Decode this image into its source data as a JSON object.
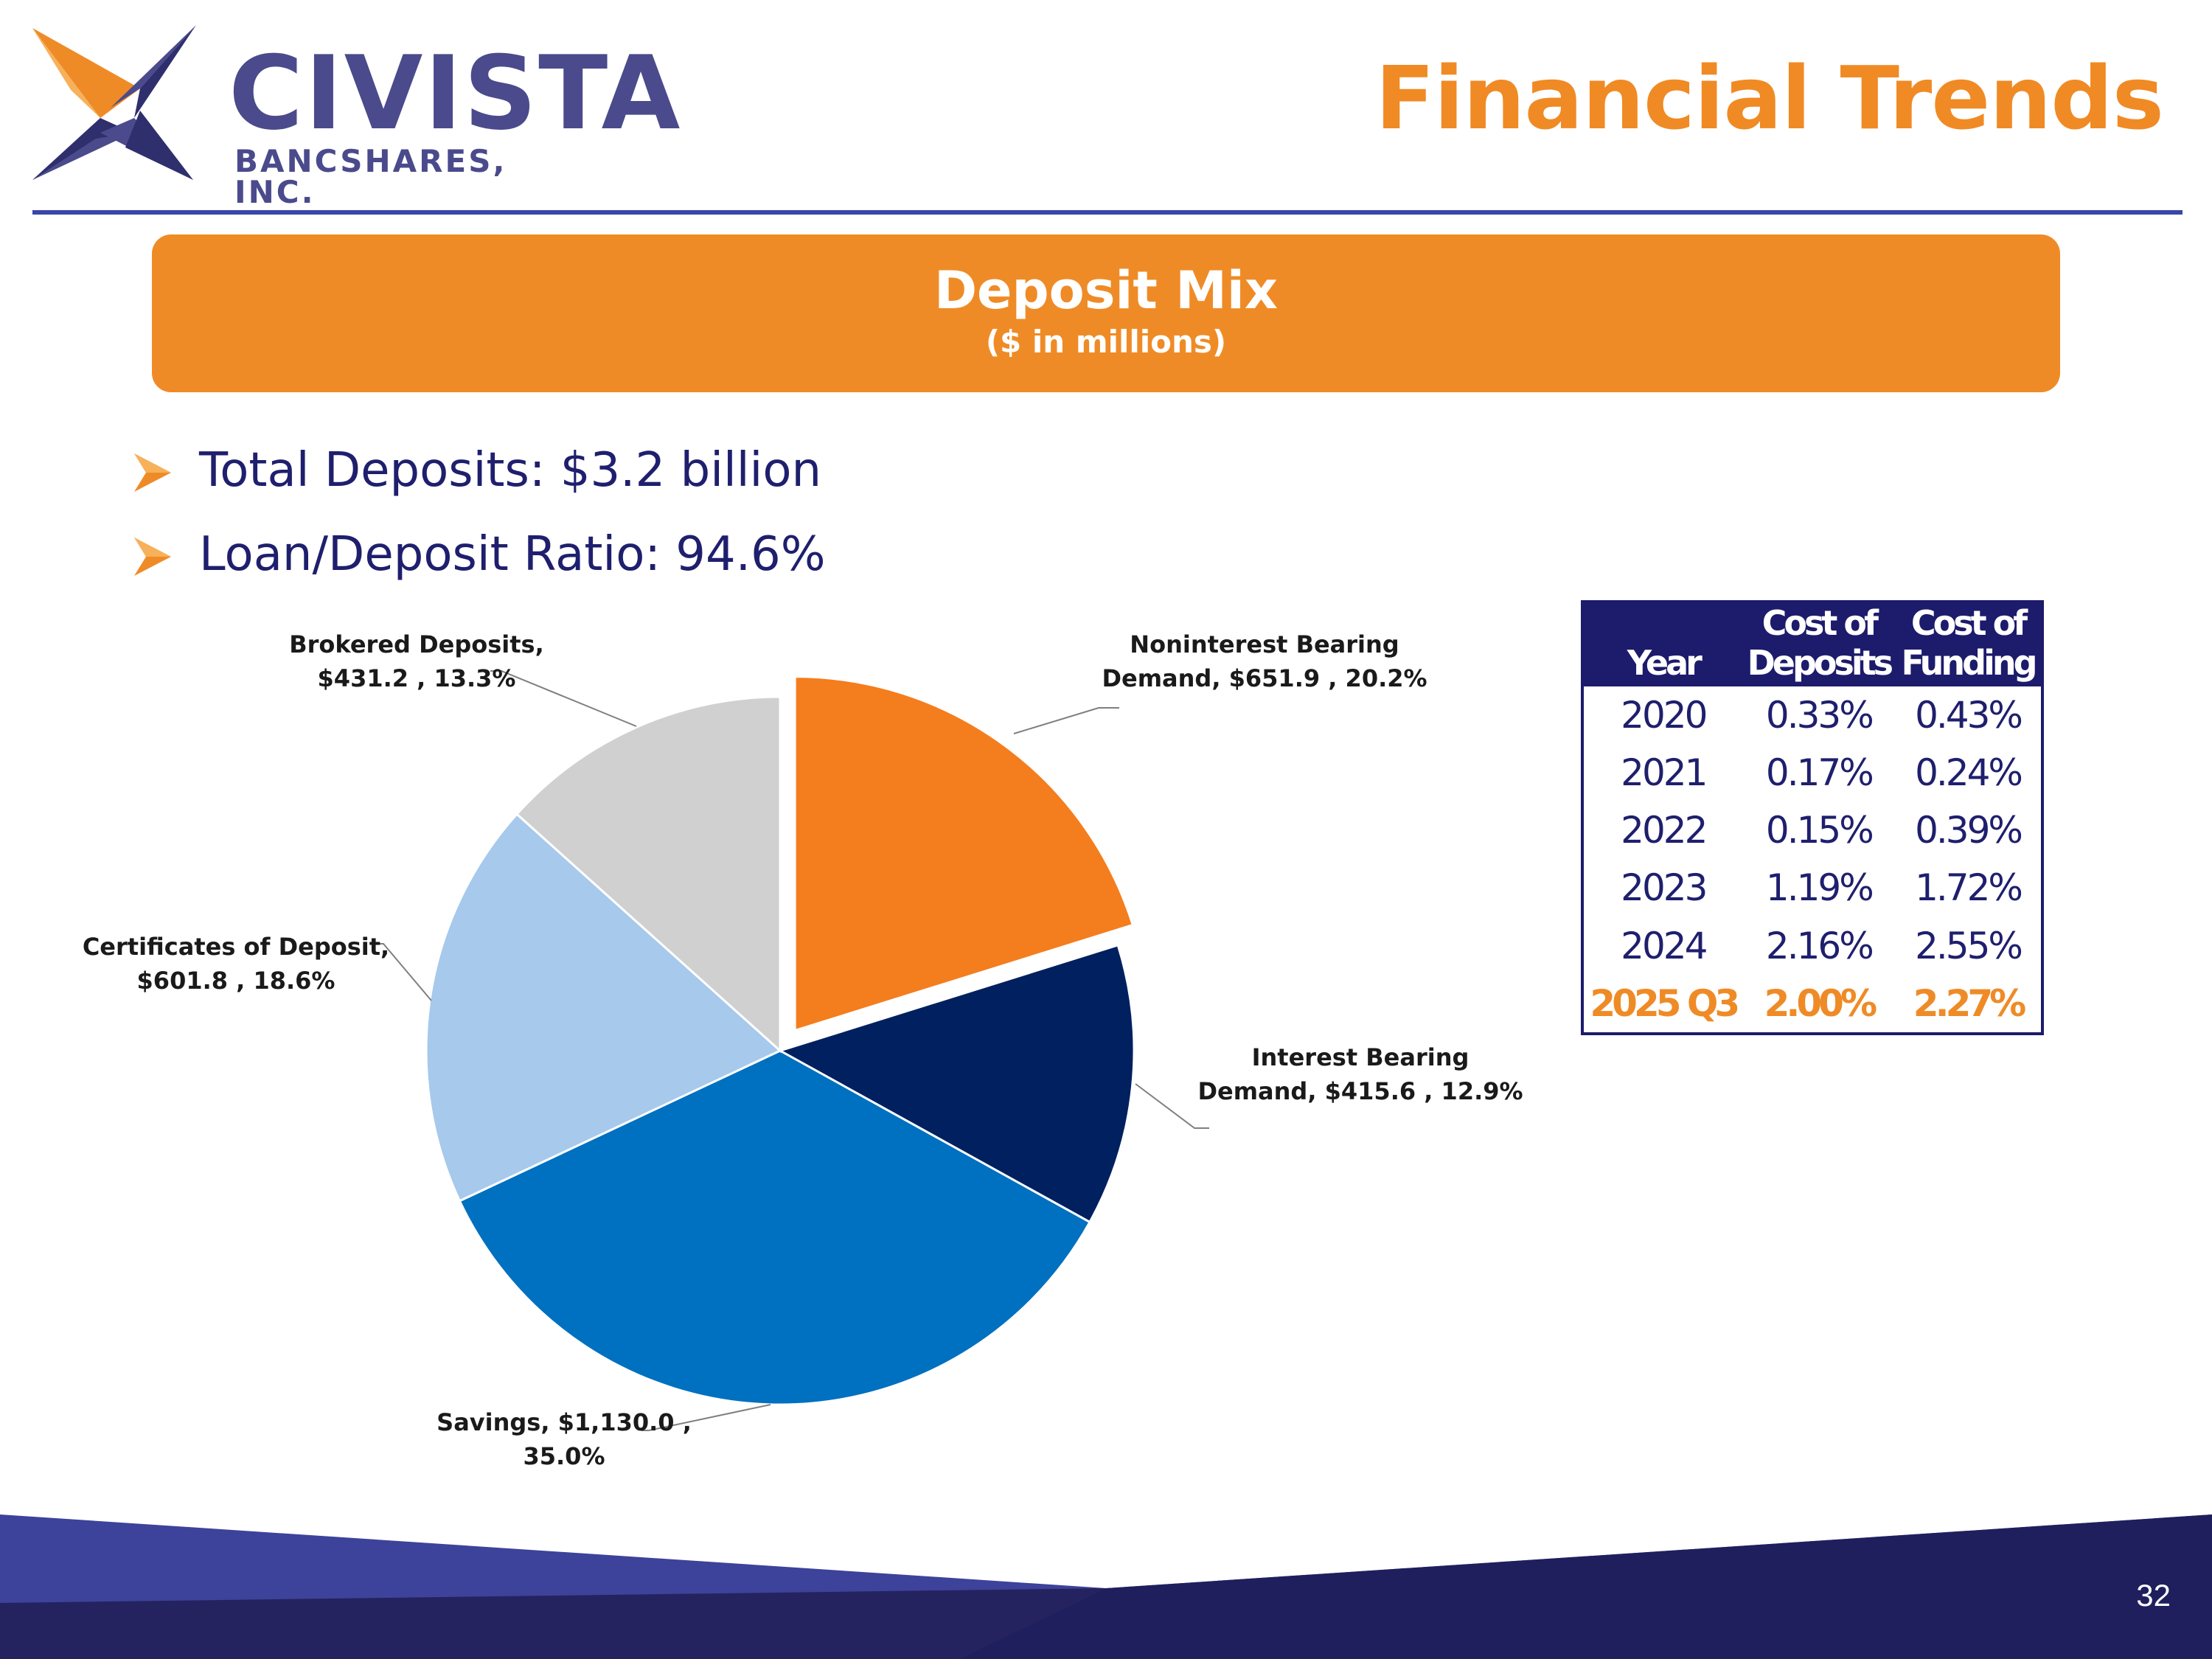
{
  "brand": {
    "name": "CIVISTA",
    "subtitle": "BANCSHARES, INC.",
    "colors": {
      "navy": "#1d1b6b",
      "orange": "#ef8b26",
      "purple": "#4a4a8c"
    }
  },
  "header": {
    "title": "Financial Trends"
  },
  "banner": {
    "title": "Deposit Mix",
    "subtitle": "($ in millions)"
  },
  "bullets": [
    {
      "text": "Total Deposits: $3.2 billion"
    },
    {
      "text": "Loan/Deposit Ratio: 94.6%"
    }
  ],
  "chart_data": {
    "type": "pie",
    "title": "Deposit Mix",
    "unit": "$ in millions",
    "slices": [
      {
        "label": "Noninterest Bearing Demand",
        "label_lines": [
          "Noninterest Bearing",
          "Demand,  $651.9 , 20.2%"
        ],
        "value": 651.9,
        "percent": 20.2,
        "color": "#f47d1e",
        "exploded": true
      },
      {
        "label": "Interest Bearing Demand",
        "label_lines": [
          "Interest Bearing",
          "Demand,  $415.6 , 12.9%"
        ],
        "value": 415.6,
        "percent": 12.9,
        "color": "#002060",
        "exploded": false
      },
      {
        "label": "Savings",
        "label_lines": [
          "Savings,  $1,130.0 ,",
          "35.0%"
        ],
        "value": 1130.0,
        "percent": 35.0,
        "color": "#0070c0",
        "exploded": false
      },
      {
        "label": "Certificates of Deposit",
        "label_lines": [
          "Certificates of Deposit,",
          "$601.8 , 18.6%"
        ],
        "value": 601.8,
        "percent": 18.6,
        "color": "#a6c9ec",
        "exploded": false
      },
      {
        "label": "Brokered Deposits",
        "label_lines": [
          "Brokered Deposits,",
          "$431.2 , 13.3%"
        ],
        "value": 431.2,
        "percent": 13.3,
        "color": "#d0d0d0",
        "exploded": false
      }
    ]
  },
  "rates_table": {
    "headers": [
      {
        "line1": "",
        "line2": "Year"
      },
      {
        "line1": "Cost of",
        "line2": "Deposits"
      },
      {
        "line1": "Cost of",
        "line2": "Funding"
      }
    ],
    "rows": [
      {
        "year": "2020",
        "deposits": "0.33%",
        "funding": "0.43%"
      },
      {
        "year": "2021",
        "deposits": "0.17%",
        "funding": "0.24%"
      },
      {
        "year": "2022",
        "deposits": "0.15%",
        "funding": "0.39%"
      },
      {
        "year": "2023",
        "deposits": "1.19%",
        "funding": "1.72%"
      },
      {
        "year": "2024",
        "deposits": "2.16%",
        "funding": "2.55%"
      },
      {
        "year": "2025 Q3",
        "deposits": "2.00%",
        "funding": "2.27%"
      }
    ]
  },
  "page_number": "32"
}
